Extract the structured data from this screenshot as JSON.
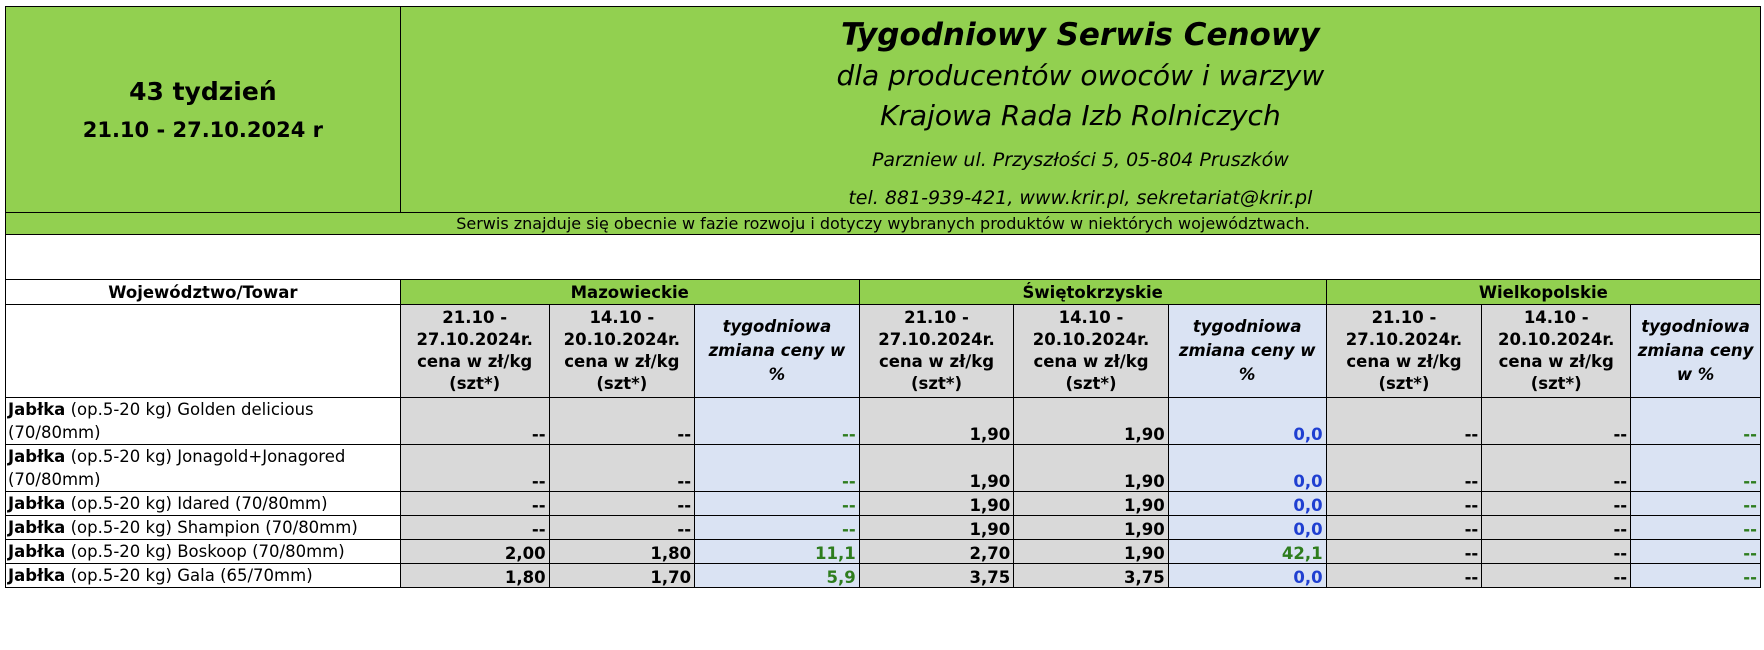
{
  "header": {
    "week_label": "43 tydzień",
    "date_range": "21.10 - 27.10.2024 r",
    "title": "Tygodniowy Serwis Cenowy",
    "subtitle": "dla producentów owoców i warzyw",
    "organization": "Krajowa Rada Izb Rolniczych",
    "address": "Parzniew ul. Przyszłości 5, 05-804 Pruszków",
    "contact": "tel. 881-939-421, www.krir.pl, sekretariat@krir.pl"
  },
  "notice": "Serwis znajduje się obecnie w fazie rozwoju i dotyczy wybranych produktów w niektórych województwach.",
  "table": {
    "first_col_header": "Województwo/Towar",
    "regions": [
      "Mazowieckie",
      "Świętokrzyskie",
      "Wielkopolskie"
    ],
    "col_headers": {
      "maz": [
        "21.10 - 27.10.2024r. cena w zł/kg (szt*)",
        "14.10 - 20.10.2024r. cena w zł/kg (szt*)",
        "tygodniowa zmiana ceny w %"
      ],
      "swi": [
        "21.10 - 27.10.2024r. cena w zł/kg (szt*)",
        "14.10 - 20.10.2024r. cena w zł/kg (szt*)",
        "tygodniowa zmiana ceny w %"
      ],
      "wlk": [
        "21.10 - 27.10.2024r. cena w zł/kg (szt*)",
        "14.10 - 20.10.2024r. cena w zł/kg (szt*)",
        "tygodniowa zmiana ceny w %"
      ]
    },
    "rows": [
      {
        "prod_bold": "Jabłka",
        "prod_rest": " (op.5-20 kg) Golden delicious (70/80mm)",
        "values": [
          "--",
          "--",
          "--",
          "1,90",
          "1,90",
          "0,0",
          "--",
          "--",
          "--"
        ]
      },
      {
        "prod_bold": "Jabłka",
        "prod_rest": " (op.5-20 kg) Jonagold+Jonagored (70/80mm)",
        "values": [
          "--",
          "--",
          "--",
          "1,90",
          "1,90",
          "0,0",
          "--",
          "--",
          "--"
        ]
      },
      {
        "prod_bold": "Jabłka",
        "prod_rest": " (op.5-20 kg) Idared (70/80mm)",
        "values": [
          "--",
          "--",
          "--",
          "1,90",
          "1,90",
          "0,0",
          "--",
          "--",
          "--"
        ]
      },
      {
        "prod_bold": "Jabłka",
        "prod_rest": " (op.5-20 kg) Shampion (70/80mm)",
        "values": [
          "--",
          "--",
          "--",
          "1,90",
          "1,90",
          "0,0",
          "--",
          "--",
          "--"
        ]
      },
      {
        "prod_bold": "Jabłka",
        "prod_rest": " (op.5-20 kg) Boskoop (70/80mm)",
        "values": [
          "2,00",
          "1,80",
          "11,1",
          "2,70",
          "1,90",
          "42,1",
          "--",
          "--",
          "--"
        ]
      },
      {
        "prod_bold": "Jabłka",
        "prod_rest": " (op.5-20 kg) Gala (65/70mm)",
        "values": [
          "1,80",
          "1,70",
          "5,9",
          "3,75",
          "3,75",
          "0,0",
          "--",
          "--",
          "--"
        ]
      }
    ]
  },
  "colors": {
    "header_green": "#92d050",
    "price_gray": "#d9d9d9",
    "change_blue": "#dae3f3",
    "positive_green_text": "#2e7d1e",
    "zero_blue_text": "#1f3fd1"
  }
}
